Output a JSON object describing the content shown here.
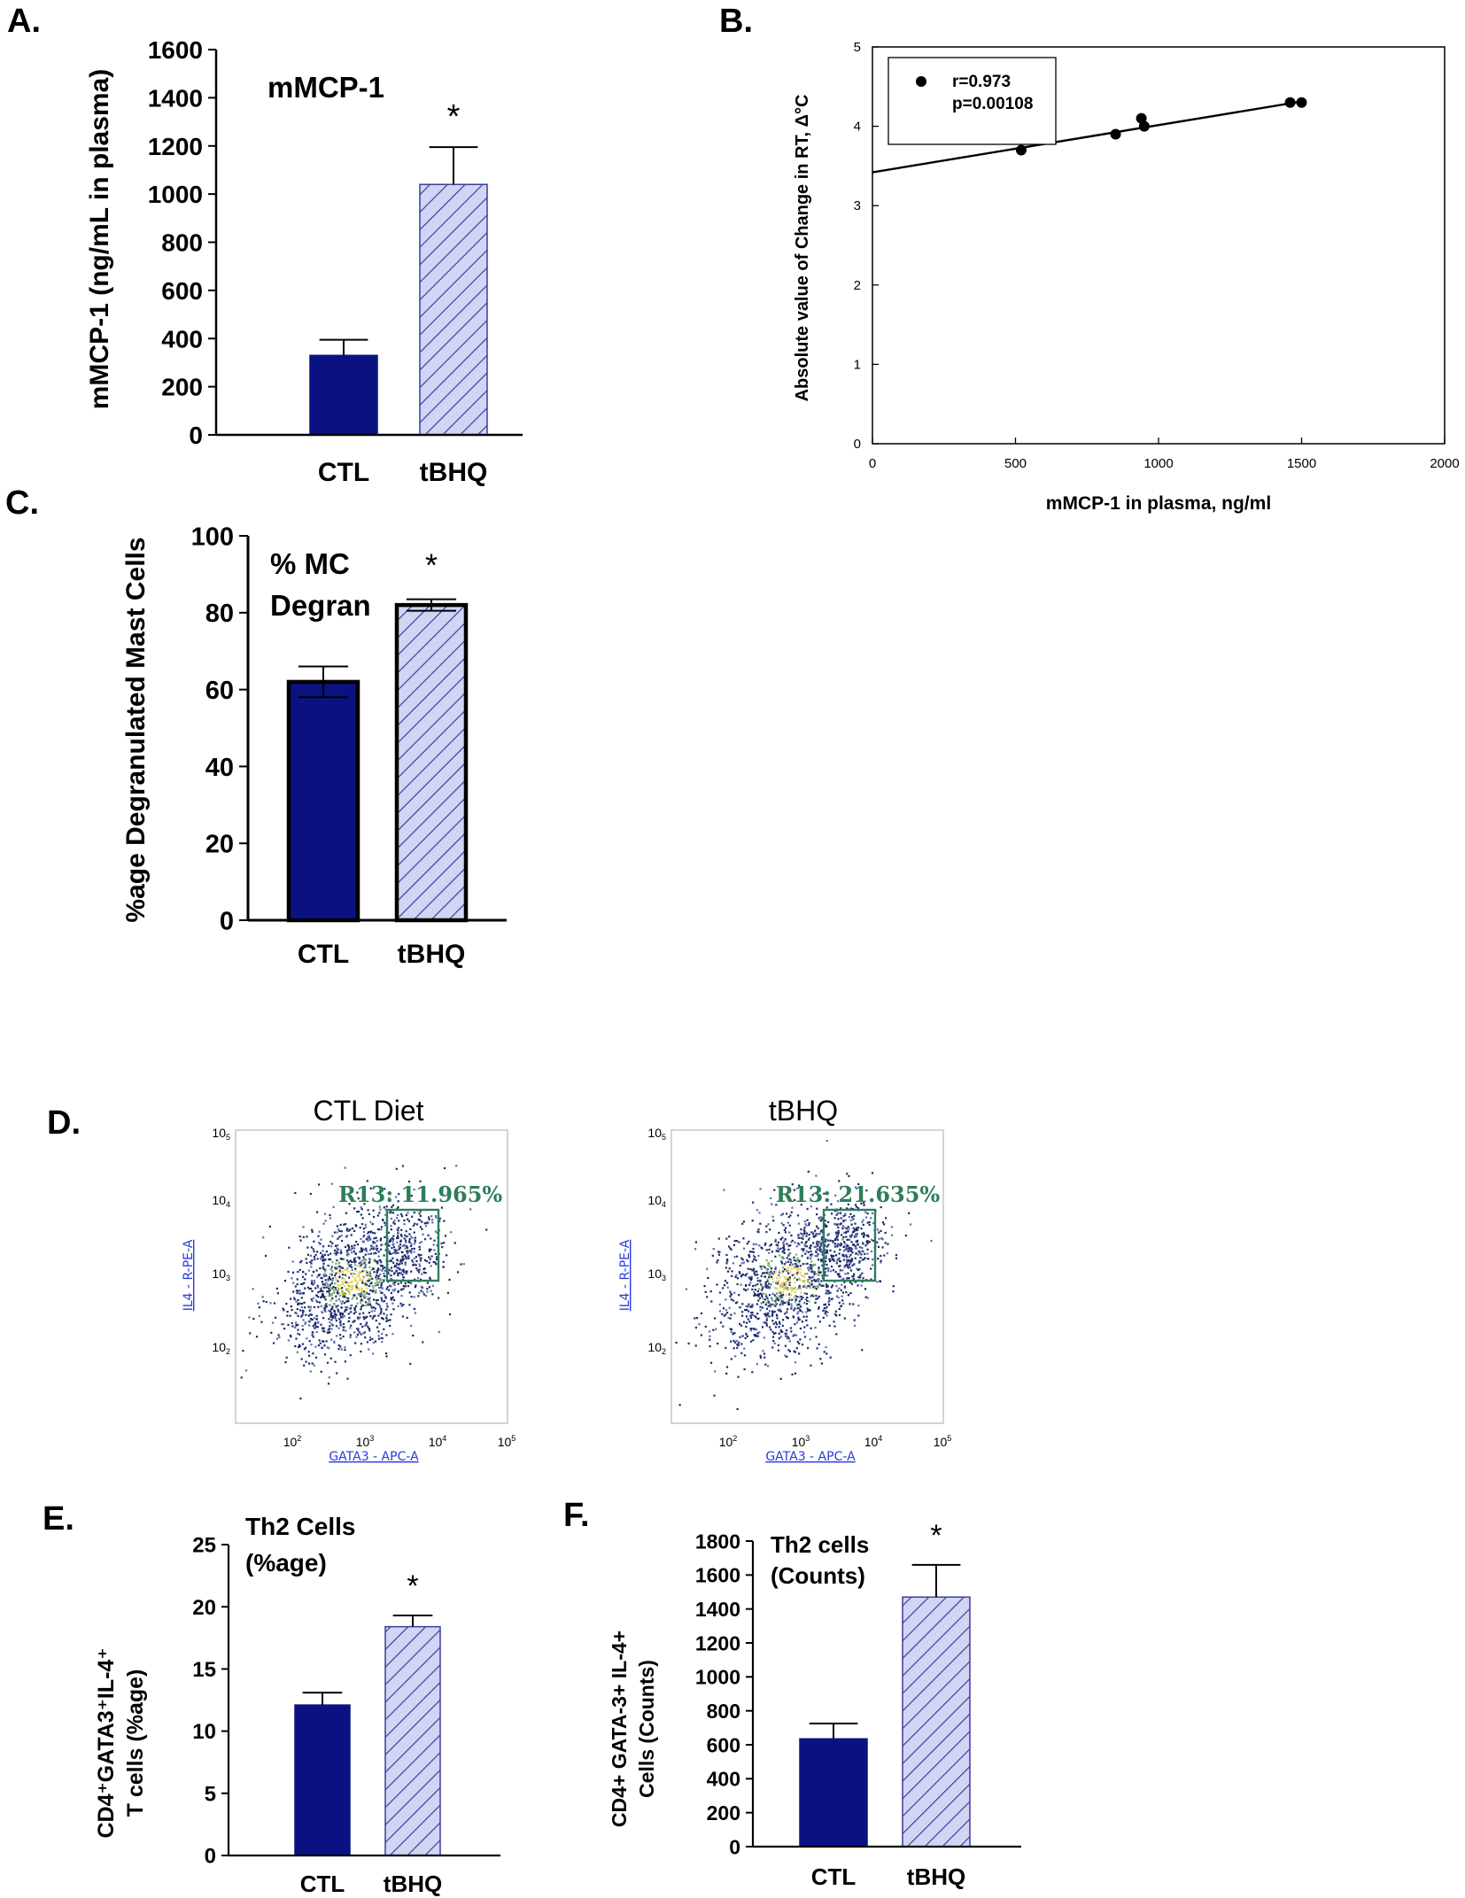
{
  "figure": {
    "colors": {
      "ctl": "#0a1282",
      "tbhq_fill": "#d2d4f4",
      "tbhq_hatch": "#3a3f9a",
      "ink": "#000000",
      "gate": "#2e7d5b",
      "flow_axis_label": "#2a3adc"
    }
  },
  "chart_data": [
    {
      "id": "A",
      "panel_letter": "A.",
      "type": "bar",
      "title": "mMCP-1",
      "categories": [
        "CTL",
        "tBHQ"
      ],
      "values": [
        330,
        1040
      ],
      "errors": [
        65,
        155
      ],
      "significance": [
        "",
        "*"
      ],
      "ylabel": "mMCP-1 (ng/mL in plasma)",
      "xlabel": "",
      "ylim": [
        0,
        1600
      ],
      "yticks": [
        0,
        200,
        400,
        600,
        800,
        1000,
        1200,
        1400,
        1600
      ]
    },
    {
      "id": "B",
      "panel_letter": "B.",
      "type": "scatter",
      "xlabel": "mMCP-1 in plasma, ng/ml",
      "ylabel": "Absolute value of Change in RT, Δ°C",
      "xlim": [
        0,
        2000
      ],
      "ylim": [
        0,
        5
      ],
      "xticks": [
        0,
        500,
        1000,
        1500,
        2000
      ],
      "yticks": [
        0,
        1,
        2,
        3,
        4,
        5
      ],
      "points": [
        {
          "x": 520,
          "y": 3.7
        },
        {
          "x": 850,
          "y": 3.9
        },
        {
          "x": 940,
          "y": 4.1
        },
        {
          "x": 950,
          "y": 4.0
        },
        {
          "x": 1460,
          "y": 4.3
        },
        {
          "x": 1500,
          "y": 4.3
        }
      ],
      "fit": {
        "intercept": 3.42,
        "slope": 0.000595,
        "x_range": [
          0,
          1500
        ]
      },
      "legend": {
        "r": "r=0.973",
        "p": "p=0.00108"
      }
    },
    {
      "id": "C",
      "panel_letter": "C.",
      "type": "bar",
      "title_lines": [
        "% MC",
        "Degran"
      ],
      "categories": [
        "CTL",
        "tBHQ"
      ],
      "values": [
        62,
        82
      ],
      "errors": [
        4,
        1.5
      ],
      "significance": [
        "",
        "*"
      ],
      "ylabel": "%age Degranulated Mast Cells",
      "xlabel": "",
      "ylim": [
        0,
        100
      ],
      "yticks": [
        0,
        20,
        40,
        60,
        80,
        100
      ]
    },
    {
      "id": "E",
      "panel_letter": "E.",
      "type": "bar",
      "title_lines": [
        "Th2 Cells",
        "(%age)"
      ],
      "categories": [
        "CTL",
        "tBHQ"
      ],
      "values": [
        12.1,
        18.4
      ],
      "errors": [
        1.0,
        0.9
      ],
      "significance": [
        "",
        "*"
      ],
      "ylabel_lines": [
        "CD4⁺GATA3⁺IL-4⁺",
        "T cells (%age)"
      ],
      "xlabel": "",
      "ylim": [
        0,
        25
      ],
      "yticks": [
        0,
        5,
        10,
        15,
        20,
        25
      ]
    },
    {
      "id": "F",
      "panel_letter": "F.",
      "type": "bar",
      "title_lines": [
        "Th2 cells",
        "(Counts)"
      ],
      "categories": [
        "CTL",
        "tBHQ"
      ],
      "values": [
        635,
        1470
      ],
      "errors": [
        90,
        190
      ],
      "significance": [
        "",
        "*"
      ],
      "ylabel_lines": [
        "CD4+ GATA-3+ IL-4+",
        "Cells (Counts)"
      ],
      "xlabel": "",
      "ylim": [
        0,
        1800
      ],
      "yticks": [
        0,
        200,
        400,
        600,
        800,
        1000,
        1200,
        1400,
        1600,
        1800
      ]
    }
  ],
  "flow_panels": {
    "panel_letter": "D.",
    "xlabel": "GATA3 - APC-A",
    "ylabel": "IL4 - R-PE-A",
    "tick_base": "10",
    "x_exponents": [
      "2",
      "3",
      "4",
      "5"
    ],
    "y_exponents": [
      "2",
      "3",
      "4",
      "5"
    ],
    "plots": [
      {
        "title": "CTL Diet",
        "gate_label": "R13: 11.965%",
        "gate_percent": 11.965
      },
      {
        "title": "tBHQ",
        "gate_label": "R13: 21.635%",
        "gate_percent": 21.635
      }
    ]
  }
}
